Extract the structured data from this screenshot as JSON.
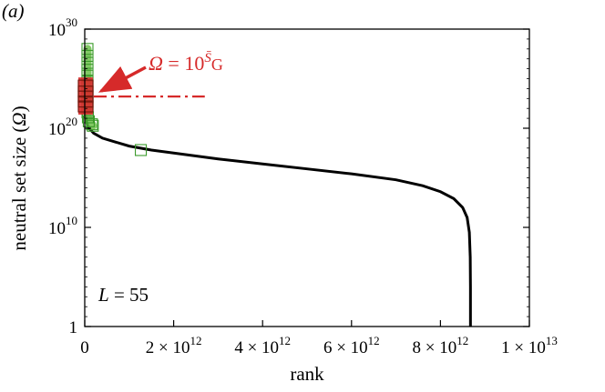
{
  "panel_label": "(a)",
  "chart_data": {
    "type": "line",
    "xlabel": "rank",
    "ylabel": "neutral set size (Ω)",
    "xlim": [
      0,
      10000000000000.0
    ],
    "ylim_log10": [
      0,
      30
    ],
    "y_scale": "log",
    "grid": false,
    "x_ticks": [
      {
        "value": 0,
        "label": "0"
      },
      {
        "value": 2000000000000.0,
        "label": "2 × 10",
        "exp": "12"
      },
      {
        "value": 4000000000000.0,
        "label": "4 × 10",
        "exp": "12"
      },
      {
        "value": 6000000000000.0,
        "label": "6 × 10",
        "exp": "12"
      },
      {
        "value": 8000000000000.0,
        "label": "8 × 10",
        "exp": "12"
      },
      {
        "value": 10000000000000.0,
        "label": "1 × 10",
        "exp": "13"
      }
    ],
    "y_ticks": [
      {
        "log10": 0,
        "label": "1",
        "exp": ""
      },
      {
        "log10": 10,
        "label": "10",
        "exp": "10"
      },
      {
        "log10": 20,
        "label": "10",
        "exp": "20"
      },
      {
        "log10": 30,
        "label": "10",
        "exp": "30"
      }
    ],
    "annotation": {
      "omega": "Ω",
      "eq": " = 10",
      "sbar": "S̄",
      "sub": "G",
      "value_log10": 23.2,
      "line_color": "#d62a2a",
      "line_x_end": 2700000000000.0
    },
    "text_label": {
      "L": "L",
      "eq": " = 55"
    },
    "series": [
      {
        "kind": "curve",
        "color": "#000000",
        "points": [
          {
            "x": 0,
            "log10_y": 22.5
          },
          {
            "x": 20000000000.0,
            "log10_y": 21.2
          },
          {
            "x": 50000000000.0,
            "log10_y": 20.5
          },
          {
            "x": 100000000000.0,
            "log10_y": 20.0
          },
          {
            "x": 200000000000.0,
            "log10_y": 19.5
          },
          {
            "x": 400000000000.0,
            "log10_y": 19.0
          },
          {
            "x": 700000000000.0,
            "log10_y": 18.6
          },
          {
            "x": 1000000000000.0,
            "log10_y": 18.2
          },
          {
            "x": 1500000000000.0,
            "log10_y": 17.8
          },
          {
            "x": 2000000000000.0,
            "log10_y": 17.5
          },
          {
            "x": 3000000000000.0,
            "log10_y": 16.9
          },
          {
            "x": 4000000000000.0,
            "log10_y": 16.4
          },
          {
            "x": 5000000000000.0,
            "log10_y": 15.9
          },
          {
            "x": 6000000000000.0,
            "log10_y": 15.4
          },
          {
            "x": 7000000000000.0,
            "log10_y": 14.8
          },
          {
            "x": 7600000000000.0,
            "log10_y": 14.2
          },
          {
            "x": 8000000000000.0,
            "log10_y": 13.6
          },
          {
            "x": 8300000000000.0,
            "log10_y": 12.9
          },
          {
            "x": 8500000000000.0,
            "log10_y": 12.0
          },
          {
            "x": 8600000000000.0,
            "log10_y": 11.0
          },
          {
            "x": 8650000000000.0,
            "log10_y": 9.5
          },
          {
            "x": 8670000000000.0,
            "log10_y": 7.0
          },
          {
            "x": 8675000000000.0,
            "log10_y": 4.0
          },
          {
            "x": 8675000000000.0,
            "log10_y": 0
          }
        ]
      },
      {
        "kind": "sampled_green",
        "color": "#3a9a2a",
        "points": [
          {
            "x": 0,
            "log10_y": 28.0
          },
          {
            "x": 0,
            "log10_y": 27.3
          },
          {
            "x": 0,
            "log10_y": 26.6
          },
          {
            "x": 0,
            "log10_y": 25.9
          },
          {
            "x": 0,
            "log10_y": 25.3
          },
          {
            "x": 0,
            "log10_y": 24.7
          },
          {
            "x": 0,
            "log10_y": 24.2
          },
          {
            "x": 0,
            "log10_y": 23.6
          },
          {
            "x": 0,
            "log10_y": 23.1
          },
          {
            "x": 0,
            "log10_y": 22.6
          },
          {
            "x": 0,
            "log10_y": 22.1
          },
          {
            "x": 0,
            "log10_y": 21.6
          },
          {
            "x": 10000000000.0,
            "log10_y": 21.1
          },
          {
            "x": 30000000000.0,
            "log10_y": 20.7
          },
          {
            "x": 100000000000.0,
            "log10_y": 20.4
          },
          {
            "x": 120000000000.0,
            "log10_y": 20.25
          },
          {
            "x": 1200000000000.0,
            "log10_y": 17.8
          }
        ]
      },
      {
        "kind": "sampled_red",
        "color": "#d62a2a",
        "points": [
          {
            "x": 0,
            "log10_y": 24.3
          },
          {
            "x": 0,
            "log10_y": 23.7
          },
          {
            "x": 0,
            "log10_y": 23.2
          },
          {
            "x": 0,
            "log10_y": 22.7
          },
          {
            "x": 0,
            "log10_y": 22.2
          }
        ]
      }
    ]
  }
}
